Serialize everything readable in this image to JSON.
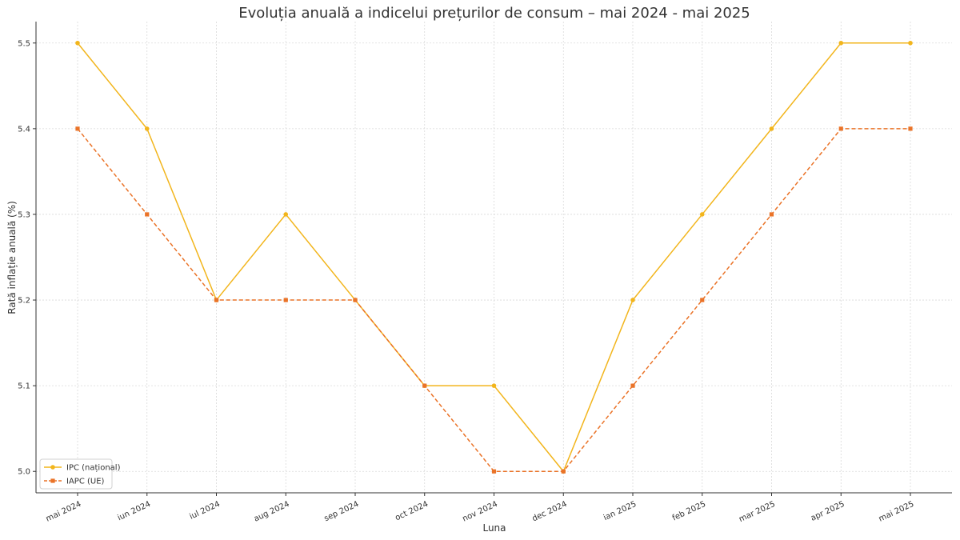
{
  "chart_data": {
    "type": "line",
    "title": "Evoluția anuală a indicelui prețurilor de consum – mai 2024 - mai 2025",
    "xlabel": "Luna",
    "ylabel": "Rată inflație anuală (%)",
    "categories": [
      "mai 2024",
      "iun 2024",
      "iul 2024",
      "aug 2024",
      "sep 2024",
      "oct 2024",
      "nov 2024",
      "dec 2024",
      "ian 2025",
      "feb 2025",
      "mar 2025",
      "apr 2025",
      "mai 2025"
    ],
    "y_ticks": [
      "5.0",
      "5.1",
      "5.2",
      "5.3",
      "5.4",
      "5.5"
    ],
    "ylim": [
      4.975,
      5.525
    ],
    "grid": true,
    "legend_position": "lower-left",
    "series": [
      {
        "name": "IPC (național)",
        "values": [
          5.5,
          5.4,
          5.2,
          5.3,
          5.2,
          5.1,
          5.1,
          5.0,
          5.2,
          5.3,
          5.4,
          5.5,
          5.5
        ],
        "color": "#f2b51c",
        "line_style": "solid",
        "marker": "circle"
      },
      {
        "name": "IAPC (UE)",
        "values": [
          5.4,
          5.3,
          5.2,
          5.2,
          5.2,
          5.1,
          5.0,
          5.0,
          5.1,
          5.2,
          5.3,
          5.4,
          5.4
        ],
        "color": "#ea7328",
        "line_style": "dashed",
        "marker": "square"
      }
    ]
  }
}
